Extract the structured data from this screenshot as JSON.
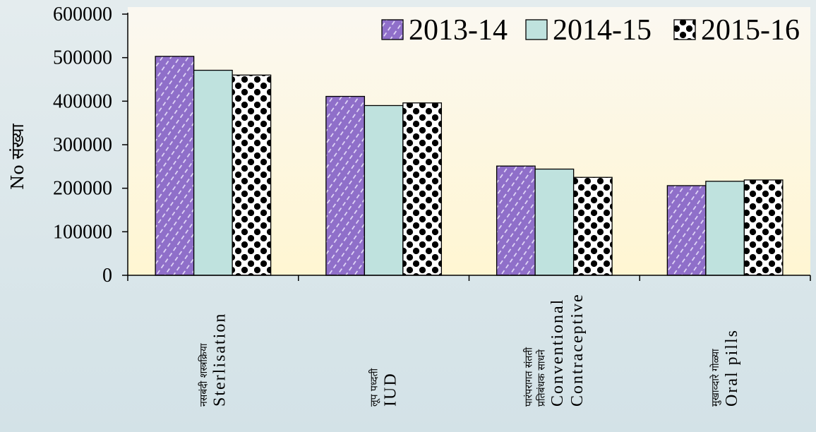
{
  "chart_data": {
    "type": "bar",
    "title": "",
    "ylabel": "No संख्या",
    "ylim": [
      0,
      600000
    ],
    "yticks": [
      0,
      100000,
      200000,
      300000,
      400000,
      500000,
      600000
    ],
    "legend_position": "top-right",
    "grid": false,
    "categories": [
      {
        "mr": [
          "नसबंदी शस्त्रक्रिया"
        ],
        "en": [
          "Sterlisation"
        ]
      },
      {
        "mr": [
          "लूप पध्दती"
        ],
        "en": [
          "IUD"
        ]
      },
      {
        "mr": [
          "पारंपरागत संतती",
          "प्रतिबंधक साधने"
        ],
        "en": [
          "Conventional",
          "Contraceptive"
        ]
      },
      {
        "mr": [
          "मुखाव्दारे गोळ्या"
        ],
        "en": [
          "Oral pills"
        ]
      }
    ],
    "series": [
      {
        "name": "2013-14",
        "pattern": "purple-dash",
        "color": "#8f6fc9",
        "values": [
          503000,
          411000,
          251000,
          206000
        ]
      },
      {
        "name": "2014-15",
        "pattern": "solid",
        "color": "#bfe2de",
        "values": [
          471000,
          390000,
          244000,
          216000
        ]
      },
      {
        "name": "2015-16",
        "pattern": "black-dots",
        "color": "#000000",
        "values": [
          460000,
          396000,
          225000,
          219000
        ]
      }
    ]
  }
}
